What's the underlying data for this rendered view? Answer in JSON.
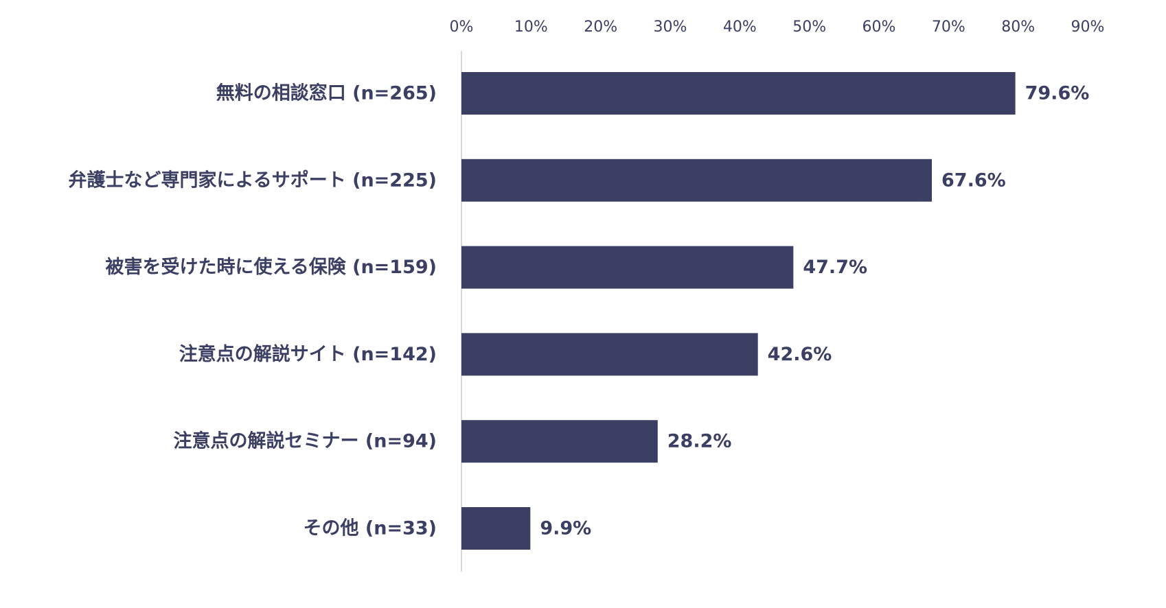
{
  "chart_data": {
    "type": "bar",
    "orientation": "horizontal",
    "categories": [
      "無料の相談窓口 (n=265)",
      "弁護士など専門家によるサポート (n=225)",
      "被害を受けた時に使える保険 (n=159)",
      "注意点の解説サイト (n=142)",
      "注意点の解説セミナー (n=94)",
      "その他 (n=33)"
    ],
    "values": [
      79.6,
      67.6,
      47.7,
      42.6,
      28.2,
      9.9
    ],
    "value_labels": [
      "79.6%",
      "67.6%",
      "47.7%",
      "42.6%",
      "28.2%",
      "9.9%"
    ],
    "xlim": [
      0,
      90
    ],
    "ticks": [
      0,
      10,
      20,
      30,
      40,
      50,
      60,
      70,
      80,
      90
    ],
    "tick_labels": [
      "0%",
      "10%",
      "20%",
      "30%",
      "40%",
      "50%",
      "60%",
      "70%",
      "80%",
      "90%"
    ],
    "axis_position": "top",
    "grid": false,
    "bar_color": "#3a3f63",
    "axis_line_color": "#d9d9d9",
    "text_color": "#3a3f63"
  }
}
